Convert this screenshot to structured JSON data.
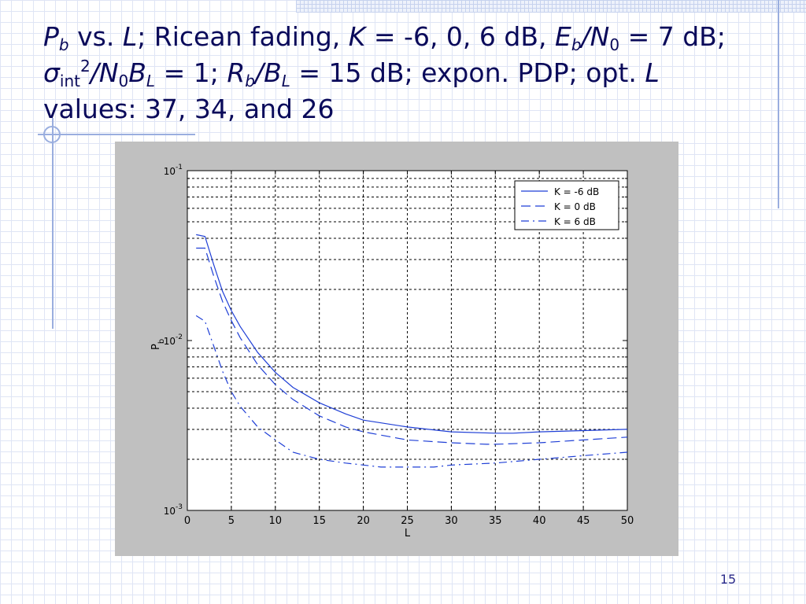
{
  "slide": {
    "title": {
      "p": "P",
      "b_sub": "b",
      "vs": " vs. ",
      "l": "L",
      "desc": "; Ricean fading, ",
      "k": "K",
      "k_vals": " = -6, 0, 6 dB, ",
      "e": "E",
      "eb_sub": "b",
      "slash_n": "/N",
      "zero_sub": "0",
      "eq7": " = 7 dB; ",
      "sigma": "σ",
      "int_sub": "int",
      "two_sup": "2",
      "slash_n2": "/N",
      "zero_sub2": "0",
      "b_big": "B",
      "l_sub": "L",
      "eq1": " = 1; ",
      "r": "R",
      "rb_sub": "b",
      "slash_b": "/B",
      "l_sub2": "L",
      "rest": " = 15 dB; expon. PDP; opt. ",
      "l2": "L",
      "values": " values: 37, 34, and 26"
    },
    "page_number": "15"
  },
  "colors": {
    "title_text": "#0a0a5a",
    "line_color": "#1f3fd6",
    "figure_bg": "#c0c0c0",
    "plot_bg": "#ffffff"
  },
  "chart_data": {
    "type": "line",
    "xlabel": "L",
    "ylabel_main": "P",
    "ylabel_sub": "b",
    "xlim": [
      0,
      50
    ],
    "ylim": [
      0.001,
      0.1
    ],
    "yscale": "log",
    "grid": true,
    "legend_position": "top-right",
    "xticks": [
      0,
      5,
      10,
      15,
      20,
      25,
      30,
      35,
      40,
      45,
      50
    ],
    "yticks": [
      {
        "value": 0.1,
        "base": "10",
        "exp": "-1"
      },
      {
        "value": 0.01,
        "base": "10",
        "exp": "-2"
      },
      {
        "value": 0.001,
        "base": "10",
        "exp": "-3"
      }
    ],
    "series": [
      {
        "name": "K = -6 dB",
        "style": "solid",
        "x": [
          1,
          2,
          3,
          4,
          5,
          6,
          8,
          10,
          12,
          15,
          18,
          20,
          25,
          30,
          35,
          37,
          40,
          45,
          50
        ],
        "y": [
          0.042,
          0.041,
          0.028,
          0.0195,
          0.015,
          0.0121,
          0.0085,
          0.0065,
          0.0053,
          0.0043,
          0.0037,
          0.0034,
          0.0031,
          0.0029,
          0.00285,
          0.00285,
          0.0029,
          0.00295,
          0.003
        ]
      },
      {
        "name": "K = 0 dB",
        "style": "dashed",
        "x": [
          1,
          2,
          3,
          4,
          5,
          6,
          8,
          10,
          12,
          15,
          18,
          20,
          25,
          30,
          34,
          35,
          40,
          45,
          50
        ],
        "y": [
          0.035,
          0.035,
          0.024,
          0.017,
          0.0131,
          0.0104,
          0.0072,
          0.0055,
          0.0045,
          0.0036,
          0.0031,
          0.0029,
          0.0026,
          0.0025,
          0.00245,
          0.00245,
          0.0025,
          0.0026,
          0.0027
        ]
      },
      {
        "name": "K = 6 dB",
        "style": "dashdot",
        "x": [
          1,
          2,
          3,
          4,
          5,
          6,
          8,
          10,
          12,
          15,
          18,
          20,
          22,
          25,
          26,
          28,
          30,
          35,
          40,
          45,
          50
        ],
        "y": [
          0.014,
          0.013,
          0.0093,
          0.0066,
          0.005,
          0.0041,
          0.0031,
          0.0026,
          0.0022,
          0.002,
          0.0019,
          0.00185,
          0.0018,
          0.0018,
          0.0018,
          0.0018,
          0.00185,
          0.0019,
          0.002,
          0.0021,
          0.0022
        ]
      }
    ]
  }
}
